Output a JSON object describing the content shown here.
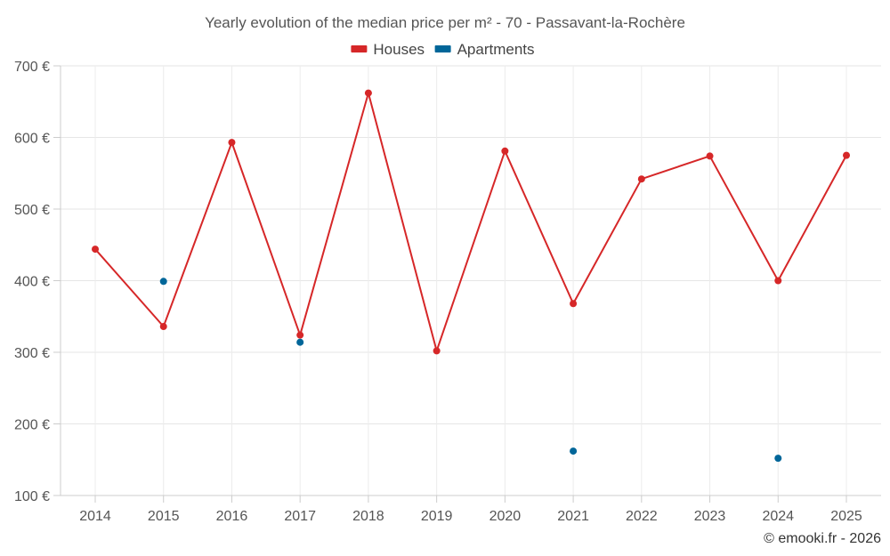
{
  "chart_data": {
    "type": "line",
    "title": "Yearly evolution of the median price per m² - 70 - Passavant-la-Rochère",
    "categories": [
      "2014",
      "2015",
      "2016",
      "2017",
      "2018",
      "2019",
      "2020",
      "2021",
      "2022",
      "2023",
      "2024",
      "2025"
    ],
    "ylim": [
      100,
      700
    ],
    "yticks": [
      100,
      200,
      300,
      400,
      500,
      600,
      700
    ],
    "ytick_labels": [
      "100 €",
      "200 €",
      "300 €",
      "400 €",
      "500 €",
      "600 €",
      "700 €"
    ],
    "grid": true,
    "legend_position": "top-center",
    "series": [
      {
        "name": "Houses",
        "color": "#d62728",
        "style": "line-markers",
        "values": [
          444,
          336,
          593,
          324,
          662,
          302,
          581,
          368,
          542,
          574,
          400,
          575
        ]
      },
      {
        "name": "Apartments",
        "color": "#006699",
        "style": "markers",
        "values": [
          null,
          399,
          null,
          314,
          null,
          null,
          null,
          162,
          null,
          null,
          152,
          null
        ]
      }
    ]
  },
  "credit": "© emooki.fr - 2026"
}
